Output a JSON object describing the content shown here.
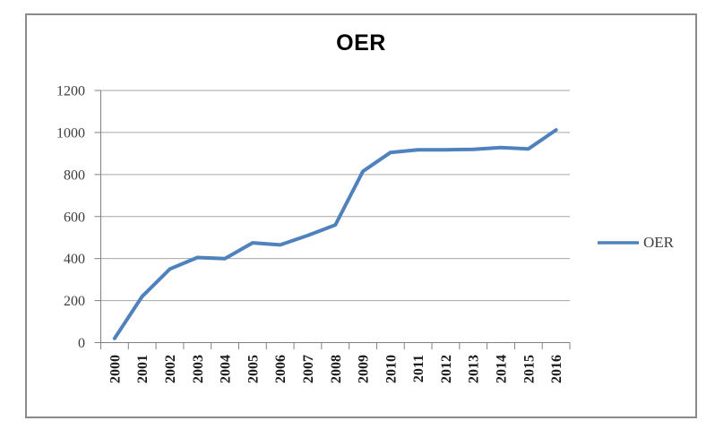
{
  "chart_data": {
    "type": "line",
    "title": "OER",
    "categories": [
      "2000",
      "2001",
      "2002",
      "2003",
      "2004",
      "2005",
      "2006",
      "2007",
      "2008",
      "2009",
      "2010",
      "2011",
      "2012",
      "2013",
      "2014",
      "2015",
      "2016"
    ],
    "series": [
      {
        "name": "OER",
        "values": [
          20,
          220,
          350,
          405,
          400,
          475,
          465,
          510,
          560,
          815,
          905,
          918,
          918,
          920,
          928,
          922,
          1012
        ]
      }
    ],
    "xlabel": "",
    "ylabel": "",
    "ylim": [
      0,
      1200
    ],
    "ytick_step": 200,
    "grid": true,
    "legend_position": "right"
  },
  "colors": {
    "series_line": "#4f81bd",
    "gridline": "#a6a6a6",
    "axis": "#808080",
    "frame_border": "#8a8a8a",
    "tick_text": "#3d3d3d",
    "xtick_text": "#1a1a1a",
    "title_text": "#000000"
  }
}
